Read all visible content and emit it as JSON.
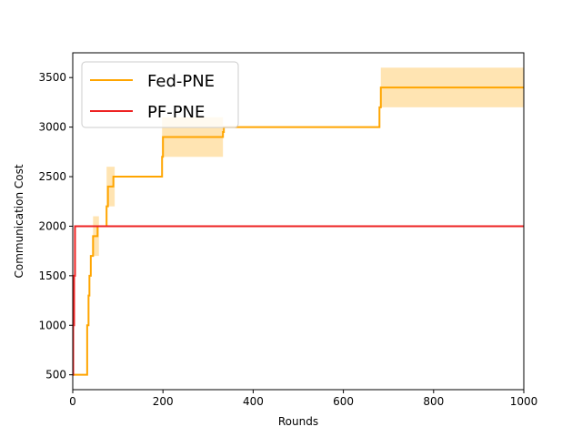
{
  "chart_data": {
    "type": "line",
    "title": "",
    "xlabel": "Rounds",
    "ylabel": "Communication Cost",
    "xlim": [
      0,
      1000
    ],
    "ylim": [
      350,
      3750
    ],
    "xticks": [
      0,
      200,
      400,
      600,
      800,
      1000
    ],
    "yticks": [
      500,
      1000,
      1500,
      2000,
      2500,
      3000,
      3500
    ],
    "grid": false,
    "legend": "top-left",
    "series": [
      {
        "name": "Fed-PNE",
        "color": "#FFA500",
        "band_color": "#FFA500",
        "x": [
          0,
          32,
          32,
          35,
          35,
          37,
          37,
          40,
          40,
          45,
          45,
          50,
          50,
          55,
          55,
          58,
          58,
          75,
          75,
          78,
          78,
          80,
          80,
          90,
          90,
          93,
          93,
          198,
          198,
          200,
          200,
          333,
          333,
          335,
          335,
          680,
          680,
          683,
          683,
          1000
        ],
        "y": [
          500,
          500,
          1000,
          1000,
          1300,
          1300,
          1500,
          1500,
          1700,
          1700,
          1900,
          1900,
          1900,
          1900,
          2000,
          2000,
          2000,
          2000,
          2200,
          2200,
          2400,
          2400,
          2400,
          2400,
          2500,
          2500,
          2500,
          2500,
          2700,
          2700,
          2900,
          2900,
          2950,
          2950,
          3000,
          3000,
          3200,
          3200,
          3400,
          3400
        ],
        "band": [
          {
            "x0": 45,
            "x1": 58,
            "lo": 1700,
            "hi": 2100
          },
          {
            "x0": 75,
            "x1": 93,
            "lo": 2200,
            "hi": 2600
          },
          {
            "x0": 198,
            "x1": 333,
            "lo": 2700,
            "hi": 3100
          },
          {
            "x0": 683,
            "x1": 1000,
            "lo": 3200,
            "hi": 3600
          }
        ]
      },
      {
        "name": "PF-PNE",
        "color": "#EE2222",
        "x": [
          0,
          1,
          1,
          3,
          3,
          5,
          5,
          1000
        ],
        "y": [
          500,
          500,
          1000,
          1000,
          1500,
          1500,
          2000,
          2000
        ]
      }
    ]
  }
}
